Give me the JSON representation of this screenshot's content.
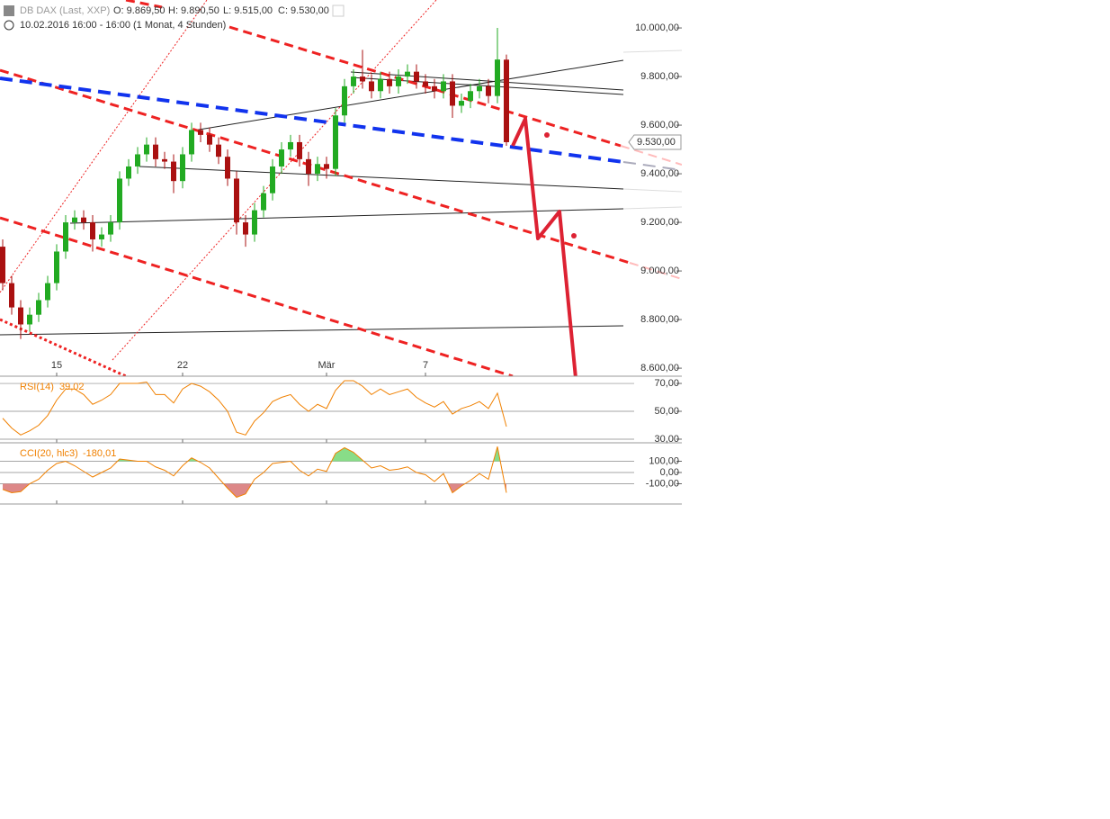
{
  "chart_data": [
    {
      "type": "candlestick",
      "title": "DB DAX (Last, XXP)",
      "ohlc_labels": [
        "O: 9.869,50",
        "H: 9.890,50",
        "L: 9.515,00",
        "C: 9.530,00"
      ],
      "subtitle": "10.02.2016 16:00 - 16:00 (1 Monat, 4 Stunden)",
      "last_label": "9.530,00",
      "categories": [
        null,
        null,
        null,
        null,
        null,
        null,
        "15",
        null,
        null,
        null,
        null,
        null,
        null,
        null,
        null,
        null,
        null,
        null,
        null,
        null,
        "22",
        null,
        null,
        null,
        null,
        null,
        null,
        null,
        null,
        null,
        null,
        null,
        null,
        null,
        null,
        null,
        "Mär",
        null,
        null,
        null,
        null,
        null,
        null,
        null,
        null,
        null,
        null,
        "7",
        null,
        null,
        null,
        null,
        null,
        null,
        null,
        null,
        null
      ],
      "open": [
        9100,
        8950,
        8850,
        8780,
        8820,
        8880,
        8950,
        9080,
        9200,
        9220,
        9200,
        9130,
        9150,
        9200,
        9380,
        9430,
        9480,
        9520,
        9460,
        9450,
        9370,
        9480,
        9580,
        9560,
        9520,
        9470,
        9380,
        9200,
        9150,
        9250,
        9320,
        9430,
        9500,
        9530,
        9460,
        9400,
        9440,
        9420,
        9640,
        9760,
        9800,
        9780,
        9740,
        9790,
        9760,
        9800,
        9820,
        9780,
        9760,
        9740,
        9780,
        9680,
        9700,
        9740,
        9760,
        9720,
        9869.5
      ],
      "high": [
        9130,
        8980,
        8880,
        8850,
        8910,
        8980,
        9110,
        9230,
        9250,
        9250,
        9230,
        9180,
        9230,
        9410,
        9460,
        9510,
        9550,
        9550,
        9490,
        9480,
        9510,
        9610,
        9610,
        9590,
        9550,
        9500,
        9410,
        9230,
        9280,
        9350,
        9460,
        9530,
        9560,
        9560,
        9490,
        9470,
        9470,
        9670,
        9790,
        9830,
        9910,
        9810,
        9820,
        9820,
        9830,
        9850,
        9850,
        9810,
        9790,
        9810,
        9810,
        9730,
        9770,
        9790,
        9790,
        10000,
        9890.5
      ],
      "low": [
        8920,
        8820,
        8720,
        8750,
        8790,
        8850,
        8920,
        9050,
        9170,
        9170,
        9080,
        9100,
        9120,
        9170,
        9350,
        9400,
        9450,
        9430,
        9420,
        9320,
        9340,
        9450,
        9530,
        9490,
        9440,
        9350,
        9150,
        9100,
        9120,
        9220,
        9290,
        9400,
        9470,
        9430,
        9350,
        9370,
        9380,
        9390,
        9610,
        9730,
        9750,
        9710,
        9710,
        9730,
        9730,
        9770,
        9750,
        9730,
        9710,
        9710,
        9630,
        9650,
        9670,
        9710,
        9690,
        9690,
        9515
      ],
      "close": [
        8950,
        8850,
        8780,
        8820,
        8880,
        8950,
        9080,
        9200,
        9220,
        9200,
        9130,
        9150,
        9200,
        9380,
        9430,
        9480,
        9520,
        9460,
        9450,
        9370,
        9480,
        9580,
        9560,
        9520,
        9470,
        9380,
        9200,
        9150,
        9250,
        9320,
        9430,
        9500,
        9530,
        9460,
        9400,
        9440,
        9420,
        9640,
        9760,
        9800,
        9780,
        9740,
        9790,
        9760,
        9800,
        9820,
        9780,
        9760,
        9740,
        9780,
        9680,
        9700,
        9740,
        9760,
        9720,
        9870,
        9530
      ],
      "up_color": "#22aa22",
      "down_color": "#aa1111",
      "ylim": [
        8567,
        10115
      ],
      "yticks": [
        {
          "value": 8600,
          "label": "8.600,00"
        },
        {
          "value": 8800,
          "label": "8.800,00"
        },
        {
          "value": 9000,
          "label": "9.000,00"
        },
        {
          "value": 9200,
          "label": "9.200,00"
        },
        {
          "value": 9400,
          "label": "9.400,00"
        },
        {
          "value": 9600,
          "label": "9.600,00"
        },
        {
          "value": 9800,
          "label": "9.800,00"
        },
        {
          "value": 10000,
          "label": "10.000,00"
        }
      ]
    },
    {
      "type": "line",
      "title": "RSI(14)",
      "value_label": "39,02",
      "color": "#f08000",
      "values": [
        45,
        38,
        33,
        36,
        40,
        47,
        58,
        66,
        66,
        62,
        55,
        58,
        62,
        70,
        70,
        70,
        71,
        62,
        62,
        56,
        66,
        70,
        68,
        64,
        58,
        50,
        35,
        33,
        43,
        49,
        57,
        60,
        62,
        55,
        50,
        55,
        52,
        65,
        72,
        72,
        68,
        62,
        66,
        62,
        64,
        66,
        60,
        56,
        53,
        57,
        48,
        52,
        54,
        57,
        52,
        63,
        39.02
      ],
      "ylim": [
        27.4,
        73.9
      ],
      "yticks": [
        {
          "value": 70,
          "label": "70,00"
        },
        {
          "value": 50,
          "label": "50,00"
        },
        {
          "value": 30,
          "label": "30,00"
        }
      ]
    },
    {
      "type": "line",
      "title": "CCI(20, hlc3)",
      "value_label": "-180,01",
      "color": "#f08000",
      "values": [
        -150,
        -180,
        -170,
        -100,
        -60,
        20,
        80,
        100,
        60,
        10,
        -40,
        0,
        40,
        120,
        110,
        100,
        100,
        50,
        20,
        -30,
        60,
        130,
        90,
        40,
        -50,
        -140,
        -220,
        -190,
        -60,
        0,
        80,
        90,
        100,
        20,
        -30,
        30,
        10,
        170,
        220,
        180,
        110,
        40,
        60,
        20,
        30,
        50,
        0,
        -20,
        -80,
        -10,
        -180,
        -120,
        -70,
        -10,
        -60,
        230,
        -180.01
      ],
      "ylim": [
        -280,
        216
      ],
      "yticks": [
        {
          "value": 100,
          "label": "100,00"
        },
        {
          "value": 0,
          "label": "0,00"
        },
        {
          "value": -100,
          "label": "-100,00"
        }
      ]
    }
  ]
}
